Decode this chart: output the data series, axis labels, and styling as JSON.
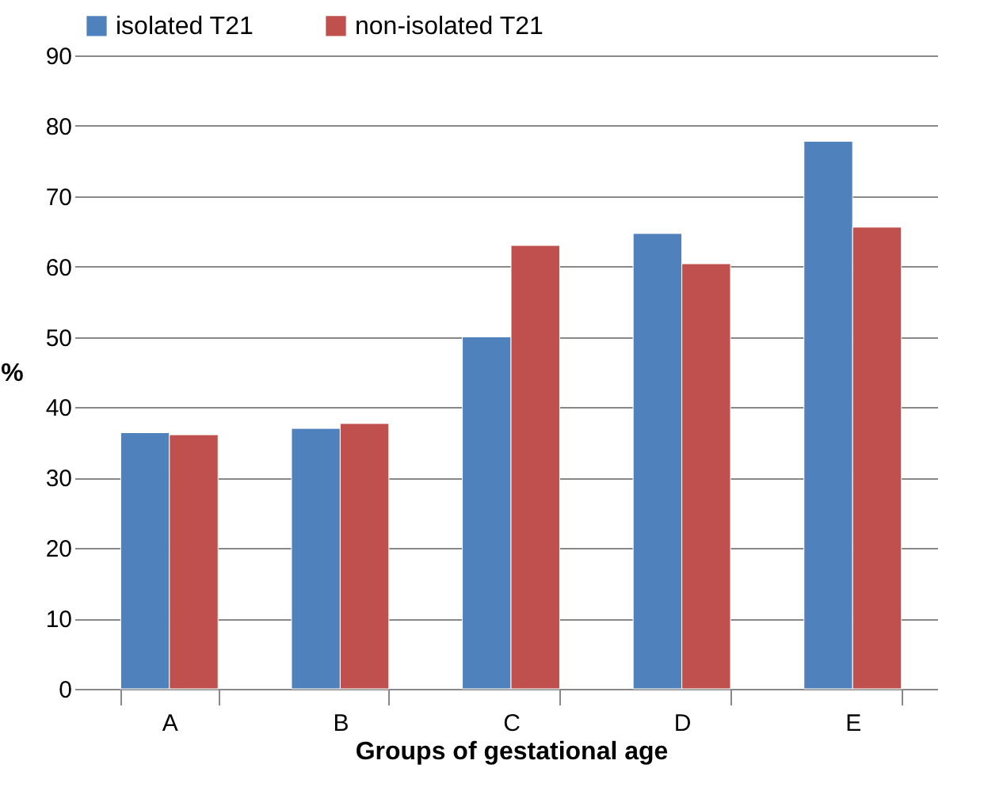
{
  "chart_data": {
    "type": "bar",
    "xlabel": "Groups of gestational age",
    "ylabel": "%",
    "categories": [
      "A",
      "B",
      "C",
      "D",
      "E"
    ],
    "series": [
      {
        "name": "isolated T21",
        "color": "#4f81bd",
        "values": [
          36.4,
          37,
          50,
          64.7,
          77.8
        ]
      },
      {
        "name": "non-isolated T21",
        "color": "#c0504d",
        "values": [
          36.1,
          37.7,
          63,
          60.4,
          65.6
        ]
      }
    ],
    "ylim": [
      0,
      90
    ],
    "yticks": [
      0,
      10,
      20,
      30,
      40,
      50,
      60,
      70,
      80,
      90
    ],
    "grid": "y",
    "legend": "top"
  }
}
